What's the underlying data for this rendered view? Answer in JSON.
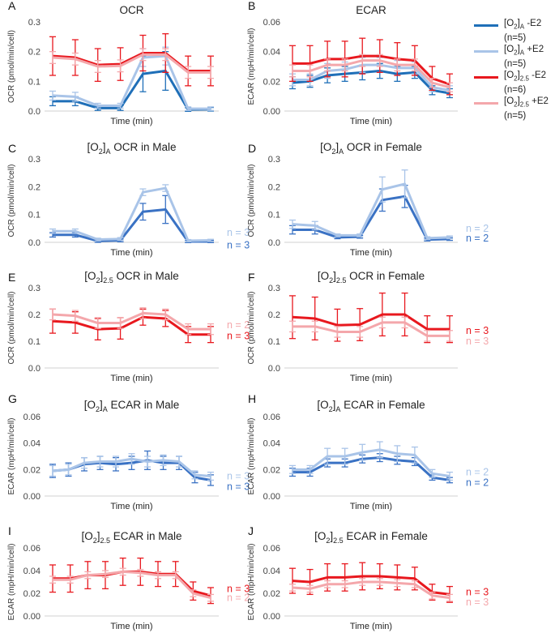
{
  "legend": [
    {
      "label": "[O2]A -E2",
      "ox": "[O",
      "sub": "2",
      "bracket": "]",
      "subB": "A",
      "suffix": " -E2",
      "n": "(n=5)",
      "color": "#1f6fb8"
    },
    {
      "label": "[O2]A +E2",
      "ox": "[O",
      "sub": "2",
      "bracket": "]",
      "subB": "A",
      "suffix": " +E2",
      "n": "(n=5)",
      "color": "#a9c4e8"
    },
    {
      "label": "[O2]2.5 -E2",
      "ox": "[O",
      "sub": "2",
      "bracket": "]",
      "subB": "2.5",
      "suffix": " -E2",
      "n": "(n=6)",
      "color": "#e8181e"
    },
    {
      "label": "[O2]2.5 +E2",
      "ox": "[O",
      "sub": "2",
      "bracket": "]",
      "subB": "2.5",
      "suffix": " +E2",
      "n": "(n=5)",
      "color": "#f4a7ab"
    }
  ],
  "chart_data": [
    {
      "panel": "A",
      "type": "line",
      "title": "OCR",
      "title_sub": "",
      "title_rest": "",
      "ylabel": "OCR (pmol/min/cell)",
      "xlabel": "Time (min)",
      "ylim": [
        0,
        0.3
      ],
      "yticks": [
        "0.0",
        "0.1",
        "0.2",
        "0.3"
      ],
      "ytick_values": [
        0,
        0.1,
        0.2,
        0.3
      ],
      "series": [
        {
          "name": "[O2]A -E2",
          "color": "#1f6fb8",
          "values": [
            0.033,
            0.033,
            0.01,
            0.01,
            0.125,
            0.135,
            0.005,
            0.006
          ],
          "err": [
            0.015,
            0.015,
            0.008,
            0.008,
            0.06,
            0.065,
            0.006,
            0.006
          ]
        },
        {
          "name": "[O2]A +E2",
          "color": "#a9c4e8",
          "values": [
            0.052,
            0.048,
            0.018,
            0.018,
            0.18,
            0.185,
            0.008,
            0.008
          ],
          "err": [
            0.015,
            0.015,
            0.008,
            0.008,
            0.03,
            0.03,
            0.006,
            0.006
          ]
        },
        {
          "name": "[O2]2.5 -E2",
          "color": "#e8181e",
          "values": [
            0.185,
            0.18,
            0.155,
            0.158,
            0.195,
            0.195,
            0.135,
            0.135
          ],
          "err": [
            0.065,
            0.06,
            0.055,
            0.055,
            0.06,
            0.065,
            0.05,
            0.05
          ]
        },
        {
          "name": "[O2]2.5 +E2",
          "color": "#f4a7ab",
          "values": [
            0.18,
            0.175,
            0.15,
            0.152,
            0.19,
            0.19,
            0.13,
            0.13
          ],
          "err": [
            0.02,
            0.02,
            0.02,
            0.02,
            0.02,
            0.02,
            0.02,
            0.02
          ]
        }
      ],
      "n_labels": []
    },
    {
      "panel": "B",
      "type": "line",
      "title": "ECAR",
      "title_sub": "",
      "title_rest": "",
      "ylabel": "ECAR (mpH/min/cell)",
      "xlabel": "Time (min)",
      "ylim": [
        0,
        0.06
      ],
      "yticks": [
        "0.00",
        "0.02",
        "0.04",
        "0.06"
      ],
      "ytick_values": [
        0,
        0.02,
        0.04,
        0.06
      ],
      "series": [
        {
          "name": "[O2]A -E2",
          "color": "#1f6fb8",
          "values": [
            0.019,
            0.02,
            0.024,
            0.025,
            0.026,
            0.027,
            0.025,
            0.026,
            0.014,
            0.012
          ],
          "err": [
            0.004,
            0.004,
            0.005,
            0.005,
            0.005,
            0.005,
            0.005,
            0.004,
            0.003,
            0.003
          ]
        },
        {
          "name": "[O2]A +E2",
          "color": "#a9c4e8",
          "values": [
            0.021,
            0.021,
            0.027,
            0.028,
            0.031,
            0.031,
            0.029,
            0.029,
            0.016,
            0.014
          ],
          "err": [
            0.004,
            0.004,
            0.005,
            0.005,
            0.005,
            0.005,
            0.005,
            0.004,
            0.003,
            0.003
          ]
        },
        {
          "name": "[O2]2.5 -E2",
          "color": "#e8181e",
          "values": [
            0.032,
            0.032,
            0.035,
            0.035,
            0.037,
            0.037,
            0.035,
            0.034,
            0.022,
            0.018
          ],
          "err": [
            0.012,
            0.012,
            0.012,
            0.012,
            0.012,
            0.011,
            0.011,
            0.01,
            0.008,
            0.007
          ]
        },
        {
          "name": "[O2]2.5 +E2",
          "color": "#f4a7ab",
          "values": [
            0.027,
            0.027,
            0.031,
            0.031,
            0.034,
            0.034,
            0.031,
            0.031,
            0.019,
            0.016
          ],
          "err": [
            0.004,
            0.004,
            0.004,
            0.004,
            0.004,
            0.004,
            0.004,
            0.004,
            0.003,
            0.003
          ]
        }
      ],
      "n_labels": []
    },
    {
      "panel": "C",
      "type": "line",
      "title": "[O",
      "title_sub": "2",
      "title_rest": "]",
      "title_sub2": "A",
      "title_end": " OCR in Male",
      "ylabel": "OCR (pmol/min/cell)",
      "xlabel": "Time (min)",
      "ylim": [
        0,
        0.3
      ],
      "yticks": [
        "0.0",
        "0.1",
        "0.2",
        "0.3"
      ],
      "ytick_values": [
        0,
        0.1,
        0.2,
        0.3
      ],
      "series": [
        {
          "name": "[O2]A -E2",
          "color": "#3a72c4",
          "values": [
            0.027,
            0.027,
            0.005,
            0.007,
            0.11,
            0.118,
            0.003,
            0.003
          ],
          "err": [
            0.008,
            0.008,
            0.005,
            0.005,
            0.03,
            0.05,
            0.004,
            0.004
          ]
        },
        {
          "name": "[O2]A +E2",
          "color": "#a9c4e8",
          "values": [
            0.04,
            0.04,
            0.01,
            0.012,
            0.18,
            0.195,
            0.006,
            0.007
          ],
          "err": [
            0.008,
            0.008,
            0.005,
            0.005,
            0.012,
            0.012,
            0.004,
            0.004
          ]
        }
      ],
      "n_labels": [
        {
          "text": "n = 3",
          "color": "#a9c4e8",
          "at": 0.035
        },
        {
          "text": "n = 3",
          "color": "#3a72c4",
          "at": -0.01
        }
      ]
    },
    {
      "panel": "D",
      "type": "line",
      "title": "[O",
      "title_sub": "2",
      "title_rest": "]",
      "title_sub2": "A",
      "title_end": " OCR in Female",
      "ylabel": "OCR (pmol/min/cell)",
      "xlabel": "Time (min)",
      "ylim": [
        0,
        0.3
      ],
      "yticks": [
        "0.0",
        "0.1",
        "0.2",
        "0.3"
      ],
      "ytick_values": [
        0,
        0.1,
        0.2,
        0.3
      ],
      "series": [
        {
          "name": "[O2]A -E2",
          "color": "#3a72c4",
          "values": [
            0.045,
            0.045,
            0.018,
            0.02,
            0.152,
            0.165,
            0.01,
            0.012
          ],
          "err": [
            0.015,
            0.015,
            0.005,
            0.005,
            0.04,
            0.04,
            0.005,
            0.005
          ]
        },
        {
          "name": "[O2]A +E2",
          "color": "#a9c4e8",
          "values": [
            0.065,
            0.06,
            0.025,
            0.025,
            0.19,
            0.21,
            0.015,
            0.018
          ],
          "err": [
            0.015,
            0.015,
            0.005,
            0.005,
            0.045,
            0.05,
            0.005,
            0.005
          ]
        }
      ],
      "n_labels": [
        {
          "text": "n = 2",
          "color": "#a9c4e8",
          "at": 0.05
        },
        {
          "text": "n = 2",
          "color": "#3a72c4",
          "at": 0.015
        }
      ]
    },
    {
      "panel": "E",
      "type": "line",
      "title": "[O",
      "title_sub": "2",
      "title_rest": "]",
      "title_sub2": "2.5",
      "title_end": " OCR in Male",
      "ylabel": "OCR (pmol/min/cell)",
      "xlabel": "Time (min)",
      "ylim": [
        0,
        0.3
      ],
      "yticks": [
        "0.0",
        "0.1",
        "0.2",
        "0.3"
      ],
      "ytick_values": [
        0,
        0.1,
        0.2,
        0.3
      ],
      "series": [
        {
          "name": "[O2]2.5 -E2",
          "color": "#e8181e",
          "values": [
            0.175,
            0.17,
            0.145,
            0.148,
            0.19,
            0.185,
            0.125,
            0.125
          ],
          "err": [
            0.045,
            0.04,
            0.04,
            0.04,
            0.03,
            0.03,
            0.03,
            0.03
          ]
        },
        {
          "name": "[O2]2.5 +E2",
          "color": "#f4a7ab",
          "values": [
            0.2,
            0.195,
            0.168,
            0.168,
            0.205,
            0.2,
            0.145,
            0.145
          ],
          "err": [
            0.02,
            0.02,
            0.02,
            0.02,
            0.02,
            0.02,
            0.02,
            0.02
          ]
        }
      ],
      "n_labels": [
        {
          "text": "n = 2",
          "color": "#f4a7ab",
          "at": 0.16
        },
        {
          "text": "n = 3",
          "color": "#e8181e",
          "at": 0.12
        }
      ]
    },
    {
      "panel": "F",
      "type": "line",
      "title": "[O",
      "title_sub": "2",
      "title_rest": "]",
      "title_sub2": "2.5",
      "title_end": " OCR in Female",
      "ylabel": "OCR (pmol/min/cell)",
      "xlabel": "Time (min)",
      "ylim": [
        0,
        0.3
      ],
      "yticks": [
        "0.0",
        "0.1",
        "0.2",
        "0.3"
      ],
      "ytick_values": [
        0,
        0.1,
        0.2,
        0.3
      ],
      "series": [
        {
          "name": "[O2]2.5 -E2",
          "color": "#e8181e",
          "values": [
            0.19,
            0.185,
            0.16,
            0.162,
            0.2,
            0.2,
            0.145,
            0.145
          ],
          "err": [
            0.08,
            0.08,
            0.06,
            0.06,
            0.08,
            0.08,
            0.05,
            0.05
          ]
        },
        {
          "name": "[O2]2.5 +E2",
          "color": "#f4a7ab",
          "values": [
            0.155,
            0.155,
            0.135,
            0.135,
            0.17,
            0.17,
            0.12,
            0.12
          ],
          "err": [
            0.02,
            0.02,
            0.02,
            0.02,
            0.02,
            0.02,
            0.02,
            0.02
          ]
        }
      ],
      "n_labels": [
        {
          "text": "n = 3",
          "color": "#e8181e",
          "at": 0.14
        },
        {
          "text": "n = 3",
          "color": "#f4a7ab",
          "at": 0.1
        }
      ]
    },
    {
      "panel": "G",
      "type": "line",
      "title": "[O",
      "title_sub": "2",
      "title_rest": "]",
      "title_sub2": "A",
      "title_end": " ECAR in Male",
      "ylabel": "ECAR (mpH/min/cell)",
      "xlabel": "Time (min)",
      "ylim": [
        0,
        0.06
      ],
      "yticks": [
        "0.00",
        "0.02",
        "0.04",
        "0.06"
      ],
      "ytick_values": [
        0,
        0.02,
        0.04,
        0.06
      ],
      "series": [
        {
          "name": "[O2]A -E2",
          "color": "#3a72c4",
          "values": [
            0.019,
            0.02,
            0.024,
            0.025,
            0.024,
            0.025,
            0.027,
            0.025,
            0.025,
            0.014,
            0.012
          ],
          "err": [
            0.005,
            0.005,
            0.005,
            0.005,
            0.005,
            0.005,
            0.007,
            0.005,
            0.005,
            0.004,
            0.004
          ]
        },
        {
          "name": "[O2]A +E2",
          "color": "#a9c4e8",
          "values": [
            0.019,
            0.02,
            0.025,
            0.026,
            0.026,
            0.028,
            0.026,
            0.027,
            0.026,
            0.016,
            0.015
          ],
          "err": [
            0.004,
            0.004,
            0.004,
            0.004,
            0.004,
            0.004,
            0.004,
            0.004,
            0.004,
            0.003,
            0.003
          ]
        }
      ],
      "n_labels": [
        {
          "text": "n = 3",
          "color": "#a9c4e8",
          "at": 0.015
        },
        {
          "text": "n = 3",
          "color": "#3a72c4",
          "at": 0.007
        }
      ]
    },
    {
      "panel": "H",
      "type": "line",
      "title": "[O",
      "title_sub": "2",
      "title_rest": "]",
      "title_sub2": "A",
      "title_end": " ECAR in Female",
      "ylabel": "ECAR (mpH/min/cell)",
      "xlabel": "Time (min)",
      "ylim": [
        0,
        0.06
      ],
      "yticks": [
        "0.00",
        "0.02",
        "0.04",
        "0.06"
      ],
      "ytick_values": [
        0,
        0.02,
        0.04,
        0.06
      ],
      "series": [
        {
          "name": "[O2]A -E2",
          "color": "#3a72c4",
          "values": [
            0.018,
            0.018,
            0.025,
            0.025,
            0.028,
            0.029,
            0.027,
            0.026,
            0.014,
            0.012
          ],
          "err": [
            0.003,
            0.003,
            0.003,
            0.003,
            0.003,
            0.003,
            0.003,
            0.003,
            0.002,
            0.002
          ]
        },
        {
          "name": "[O2]A +E2",
          "color": "#a9c4e8",
          "values": [
            0.02,
            0.02,
            0.03,
            0.03,
            0.033,
            0.035,
            0.032,
            0.031,
            0.017,
            0.015
          ],
          "err": [
            0.003,
            0.003,
            0.006,
            0.006,
            0.006,
            0.006,
            0.006,
            0.006,
            0.003,
            0.003
          ]
        }
      ],
      "n_labels": [
        {
          "text": "n = 2",
          "color": "#a9c4e8",
          "at": 0.018
        },
        {
          "text": "n = 2",
          "color": "#3a72c4",
          "at": 0.01
        }
      ]
    },
    {
      "panel": "I",
      "type": "line",
      "title": "[O",
      "title_sub": "2",
      "title_rest": "]",
      "title_sub2": "2.5",
      "title_end": " ECAR in Male",
      "ylabel": "ECAR (mpH/min/cell)",
      "xlabel": "Time (min)",
      "ylim": [
        0,
        0.06
      ],
      "yticks": [
        "0.00",
        "0.02",
        "0.04",
        "0.06"
      ],
      "ytick_values": [
        0,
        0.02,
        0.04,
        0.06
      ],
      "series": [
        {
          "name": "[O2]2.5 -E2",
          "color": "#e8181e",
          "values": [
            0.033,
            0.033,
            0.036,
            0.036,
            0.039,
            0.039,
            0.037,
            0.037,
            0.022,
            0.018
          ],
          "err": [
            0.012,
            0.012,
            0.012,
            0.012,
            0.012,
            0.012,
            0.011,
            0.011,
            0.008,
            0.007
          ]
        },
        {
          "name": "[O2]2.5 +E2",
          "color": "#f4a7ab",
          "values": [
            0.032,
            0.032,
            0.036,
            0.037,
            0.039,
            0.038,
            0.036,
            0.036,
            0.02,
            0.016
          ],
          "err": [
            0.003,
            0.003,
            0.003,
            0.003,
            0.003,
            0.003,
            0.003,
            0.003,
            0.003,
            0.003
          ]
        }
      ],
      "n_labels": [
        {
          "text": "n = 3",
          "color": "#e8181e",
          "at": 0.024
        },
        {
          "text": "n = 2",
          "color": "#f4a7ab",
          "at": 0.016
        }
      ]
    },
    {
      "panel": "J",
      "type": "line",
      "title": "[O",
      "title_sub": "2",
      "title_rest": "]",
      "title_sub2": "2.5",
      "title_end": " ECAR in Female",
      "ylabel": "ECAR (mpH/min/cell)",
      "xlabel": "Time (min)",
      "ylim": [
        0,
        0.06
      ],
      "yticks": [
        "0.00",
        "0.02",
        "0.04",
        "0.06"
      ],
      "ytick_values": [
        0,
        0.02,
        0.04,
        0.06
      ],
      "series": [
        {
          "name": "[O2]2.5 -E2",
          "color": "#e8181e",
          "values": [
            0.031,
            0.03,
            0.034,
            0.034,
            0.035,
            0.035,
            0.034,
            0.033,
            0.021,
            0.019
          ],
          "err": [
            0.011,
            0.011,
            0.012,
            0.012,
            0.012,
            0.011,
            0.011,
            0.01,
            0.007,
            0.007
          ]
        },
        {
          "name": "[O2]2.5 +E2",
          "color": "#f4a7ab",
          "values": [
            0.025,
            0.024,
            0.028,
            0.028,
            0.03,
            0.03,
            0.029,
            0.028,
            0.018,
            0.016
          ],
          "err": [
            0.003,
            0.003,
            0.003,
            0.003,
            0.003,
            0.003,
            0.003,
            0.003,
            0.003,
            0.003
          ]
        }
      ],
      "n_labels": [
        {
          "text": "n = 3",
          "color": "#e8181e",
          "at": 0.021
        },
        {
          "text": "n = 3",
          "color": "#f4a7ab",
          "at": 0.012
        }
      ]
    }
  ]
}
